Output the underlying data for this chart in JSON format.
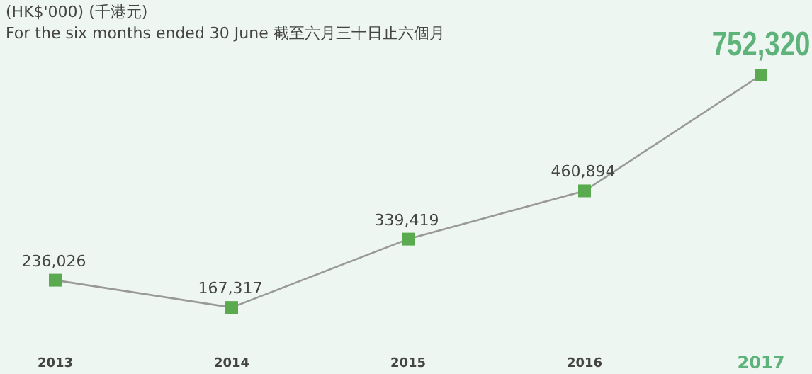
{
  "chart_data": {
    "type": "line",
    "title": "(HK$'000) (千港元)",
    "subtitle": "For the six months ended 30 June 截至六月三十日止六個月",
    "categories": [
      "2013",
      "2014",
      "2015",
      "2016",
      "2017"
    ],
    "series": [
      {
        "color": "#999999",
        "values": [
          236026,
          167317,
          339419,
          460894,
          752320
        ],
        "value_labels": [
          "236,026",
          "167,317",
          "339,419",
          "460,894",
          "752,320"
        ]
      }
    ],
    "marker": "square"
  }
}
